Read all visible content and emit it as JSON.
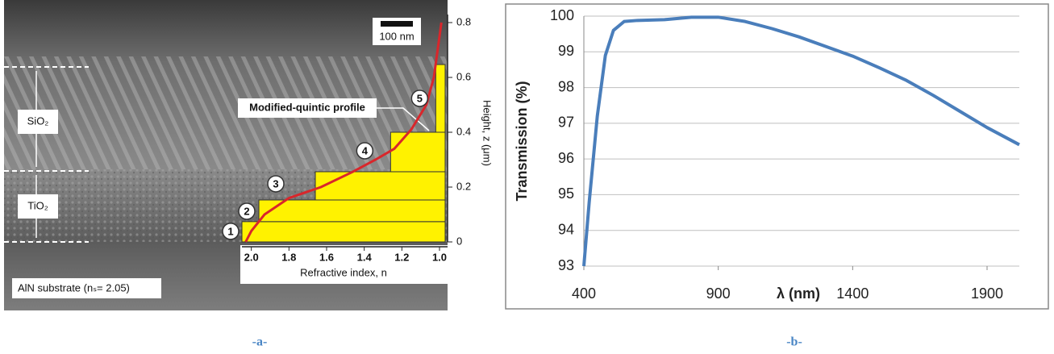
{
  "chart_data": [
    {
      "type": "step",
      "scale_bar": "100 nm",
      "annotation": "Modified-quintic profile",
      "layer_names": [
        "SiO₂",
        "TiO₂"
      ],
      "substrate": "AlN substrate (nₛ= 2.05)",
      "xlabel": "Refractive index, n",
      "ylabel": "Height, z (μm)",
      "xlim": [
        2.05,
        0.97
      ],
      "ylim": [
        0,
        0.8
      ],
      "xticks": [
        {
          "value": 2,
          "label": "2.0"
        },
        1.8,
        1.6,
        1.4,
        1.2,
        {
          "value": 1,
          "label": "1.0"
        }
      ],
      "yticks": [
        0,
        0.2,
        0.4,
        0.6,
        0.8
      ],
      "steps": {
        "labels": [
          "1",
          "2",
          "3",
          "4",
          "5"
        ],
        "n": [
          2.05,
          1.96,
          1.66,
          1.26,
          1.02
        ],
        "z_top": [
          0.074,
          0.153,
          0.256,
          0.4,
          0.647
        ],
        "color": "#fff200"
      },
      "series": [
        {
          "color": "#d9262b",
          "x": [
            2.03,
            2.0,
            1.93,
            1.8,
            1.63,
            1.46,
            1.34,
            1.24,
            1.15,
            1.07,
            1.03,
            1.01,
            0.99
          ],
          "y": [
            0,
            0.04,
            0.1,
            0.16,
            0.2,
            0.256,
            0.3,
            0.34,
            0.41,
            0.5,
            0.6,
            0.7,
            0.8
          ]
        }
      ],
      "caption": "-a-"
    },
    {
      "type": "line",
      "xlabel": "λ (nm)",
      "ylabel": "Transmission (%)",
      "xlim": [
        400,
        2020
      ],
      "ylim": [
        93,
        100
      ],
      "xticks": [
        400,
        900,
        1400,
        1900
      ],
      "yticks": [
        93,
        94,
        95,
        96,
        97,
        98,
        99,
        100
      ],
      "grid": true,
      "series": [
        {
          "color": "#4a7ebb",
          "x": [
            400,
            420,
            450,
            480,
            510,
            550,
            600,
            700,
            800,
            900,
            1000,
            1100,
            1200,
            1300,
            1400,
            1500,
            1600,
            1700,
            1800,
            1900,
            2020
          ],
          "y": [
            93,
            94.8,
            97.2,
            98.9,
            99.6,
            99.85,
            99.88,
            99.9,
            99.97,
            99.97,
            99.85,
            99.65,
            99.42,
            99.15,
            98.88,
            98.55,
            98.2,
            97.78,
            97.33,
            96.88,
            96.4
          ]
        }
      ],
      "caption": "-b-"
    }
  ]
}
